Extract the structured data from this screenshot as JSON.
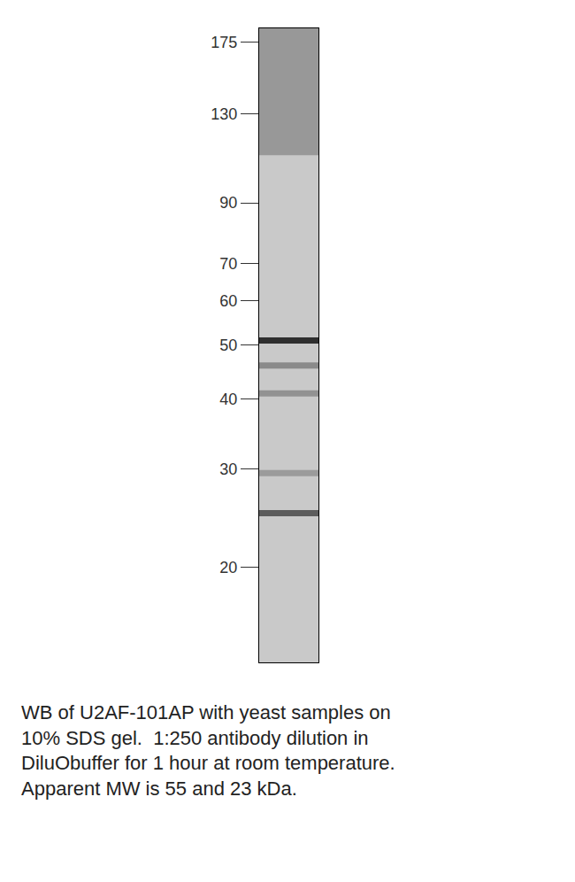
{
  "chart_data": {
    "type": "blot",
    "caption": [
      "WB of U2AF-101AP with yeast samples on",
      "10% SDS gel.  1:250 antibody dilution in",
      "DiluObuffer for 1 hour at room temperature.",
      "Apparent MW is 55 and 23 kDa."
    ],
    "bands": [
      {
        "mw": 51,
        "intensity": 0.85
      },
      {
        "mw": 46,
        "intensity": 0.35
      },
      {
        "mw": 41,
        "intensity": 0.3
      },
      {
        "mw": 29.5,
        "intensity": 0.25
      },
      {
        "mw": 25,
        "intensity": 0.6
      }
    ],
    "log": "y",
    "ylim": [
      13.5,
      185
    ],
    "yticks": [
      20,
      30,
      40,
      50,
      60,
      70,
      90,
      130,
      175
    ],
    "tick_labels": "y",
    "grid": false
  }
}
